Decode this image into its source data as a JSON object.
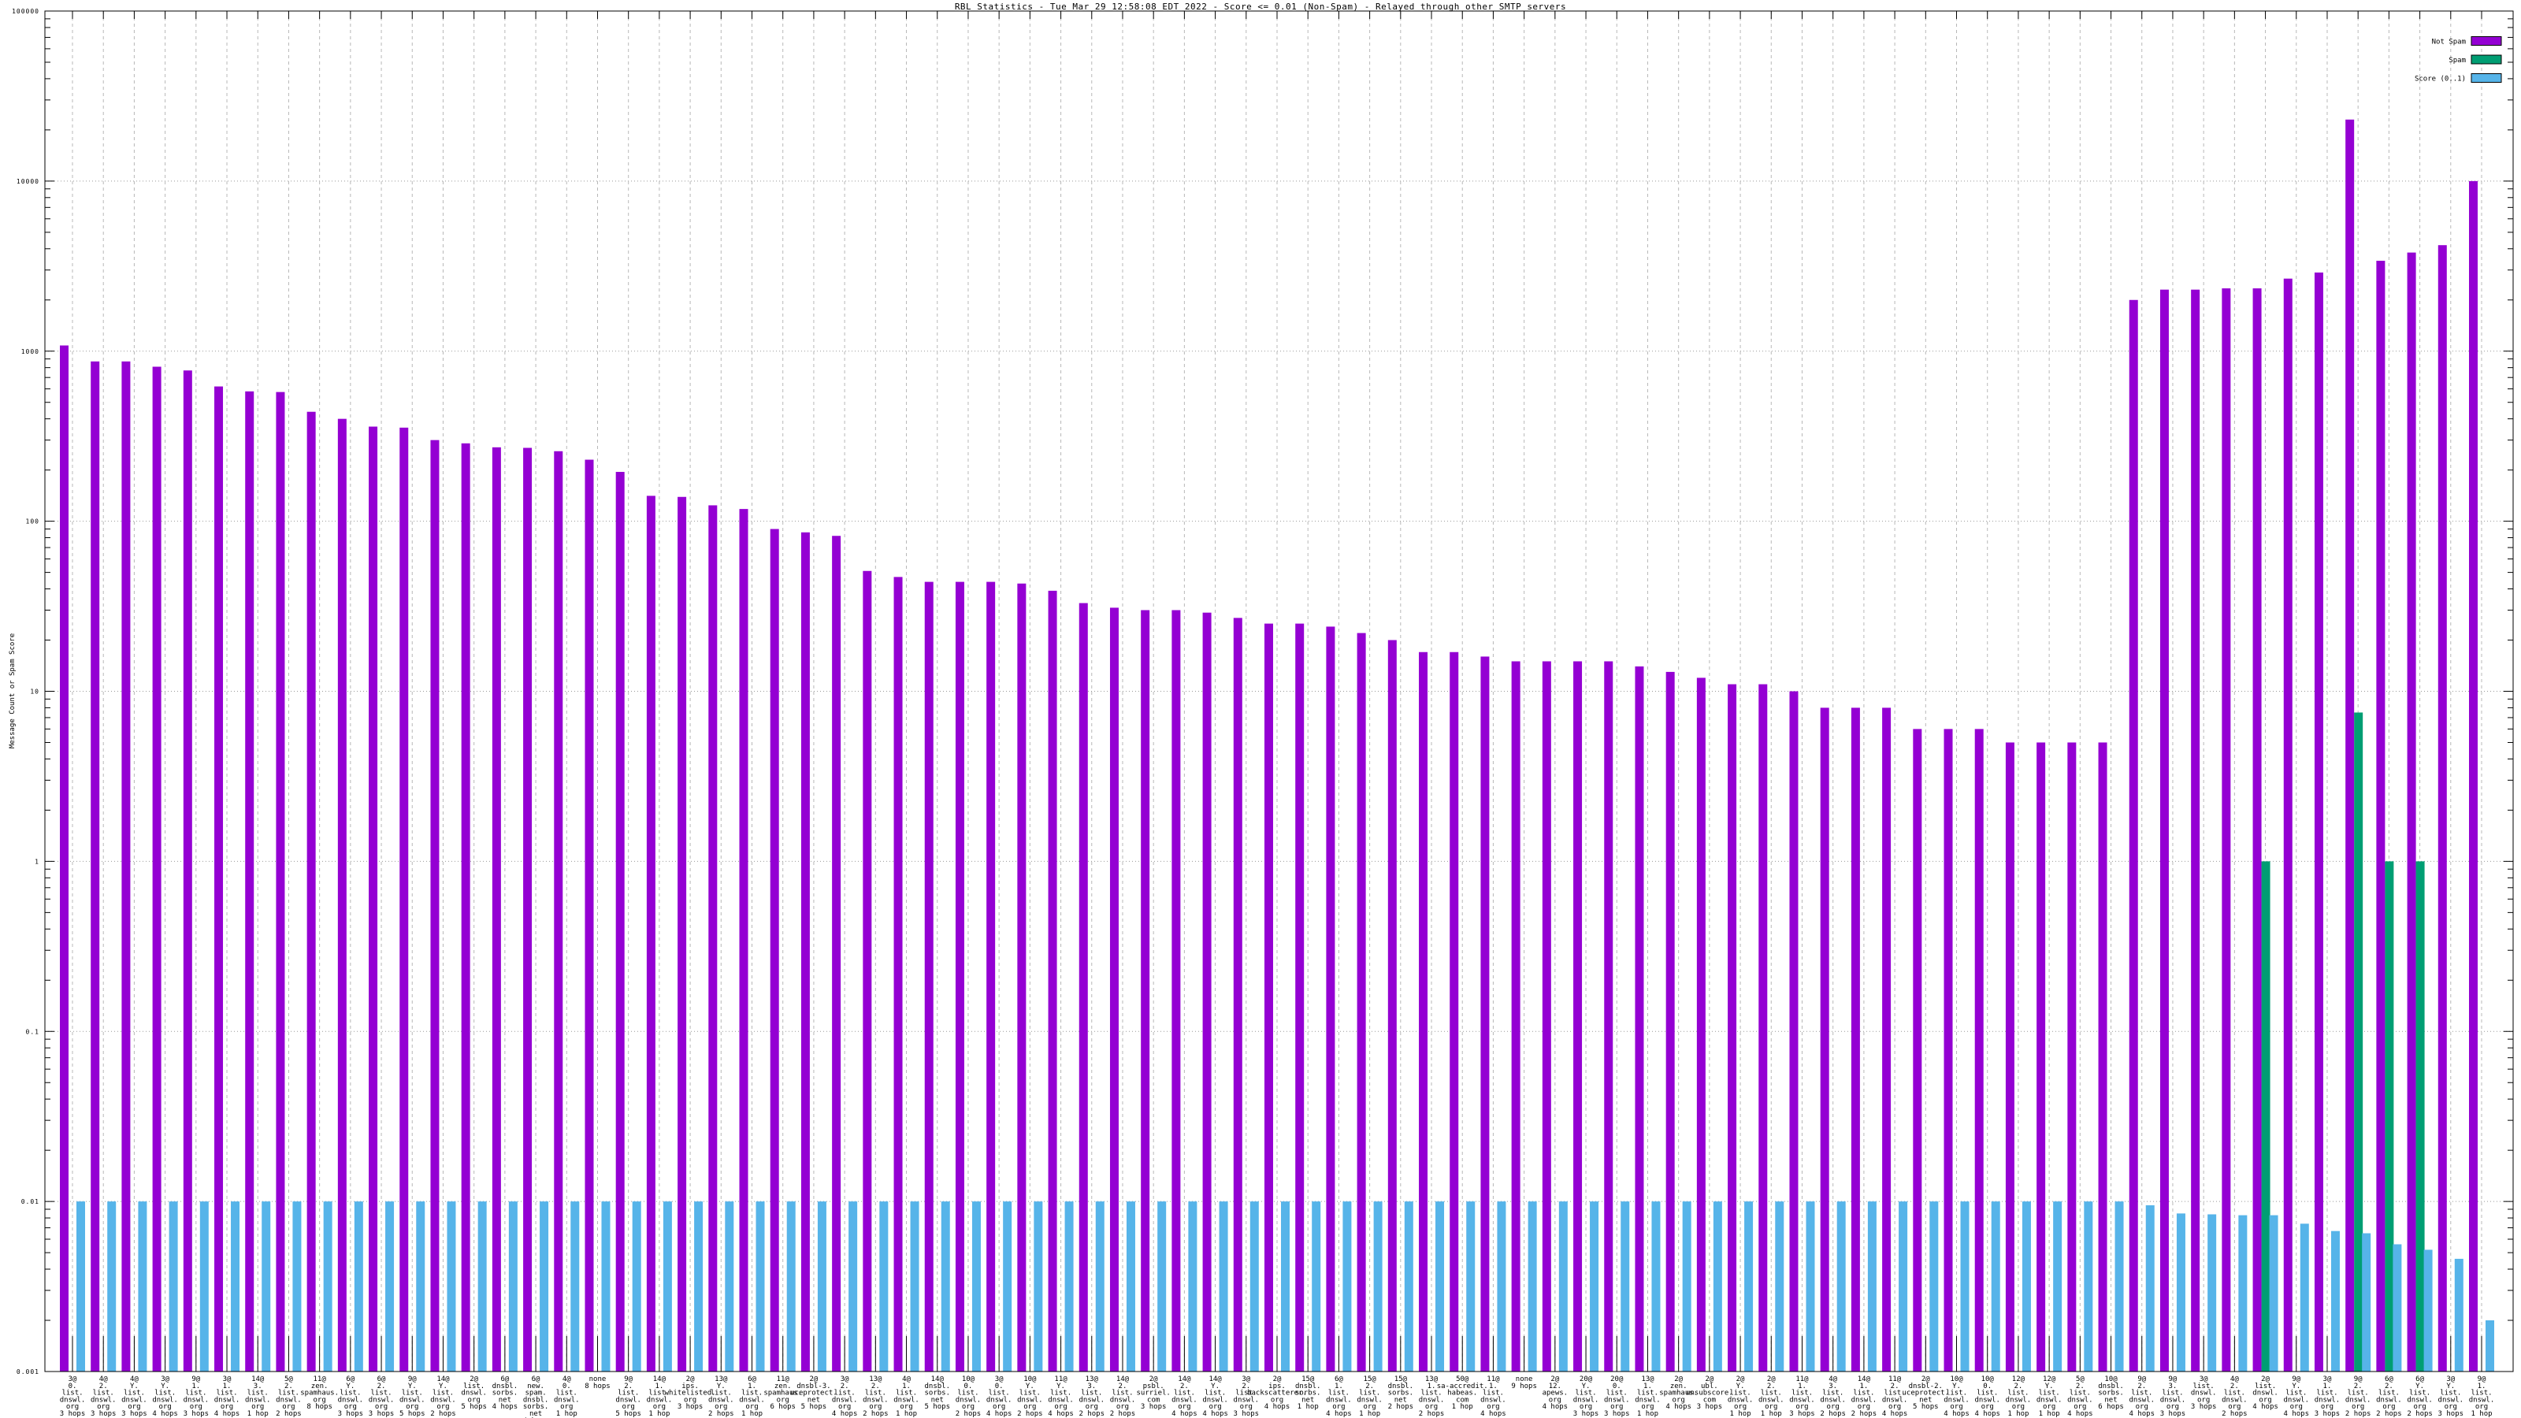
{
  "title": "RBL Statistics - Tue Mar 29 12:58:08 EDT 2022 - Score <= 0.01 (Non-Spam) - Relayed through other SMTP servers",
  "y_axis": {
    "label": "Message Count or Spam Score",
    "tick_labels": [
      "100000",
      "10000",
      "1000",
      "100",
      "10",
      "1",
      "0.1",
      "0.01",
      "0.001"
    ]
  },
  "legend": {
    "items": [
      {
        "label": "Not Spam",
        "color": "#9400d3"
      },
      {
        "label": "Spam",
        "color": "#009e73"
      },
      {
        "label": "Score (0..1)",
        "color": "#56b4e9"
      }
    ]
  },
  "chart_data": {
    "type": "bar",
    "title": "RBL Statistics - Tue Mar 29 12:58:08 EDT 2022 - Score <= 0.01 (Non-Spam) - Relayed through other SMTP servers",
    "ylabel": "Message Count or Spam Score",
    "yscale": "log",
    "ylim": [
      0.001,
      100000
    ],
    "grid": true,
    "legend_position": "top-right",
    "categories": [
      [
        "3@",
        "0.",
        "list.",
        "dnswl.",
        "org",
        "3 hops"
      ],
      [
        "4@",
        "2.",
        "list.",
        "dnswl.",
        "org",
        "3 hops"
      ],
      [
        "4@",
        "Y.",
        "list.",
        "dnswl.",
        "org",
        "3 hops"
      ],
      [
        "3@",
        "Y.",
        "list.",
        "dnswl.",
        "org",
        "4 hops"
      ],
      [
        "9@",
        "1.",
        "list.",
        "dnswl.",
        "org",
        "3 hops"
      ],
      [
        "3@",
        "1.",
        "list.",
        "dnswl.",
        "org",
        "4 hops"
      ],
      [
        "14@",
        "3.",
        "list.",
        "dnswl.",
        "org",
        "1 hop"
      ],
      [
        "5@",
        "2.",
        "list.",
        "dnswl.",
        "org",
        "2 hops"
      ],
      [
        "11@",
        "zen.",
        "spamhaus.",
        "org",
        "8 hops"
      ],
      [
        "6@",
        "Y.",
        "list.",
        "dnswl.",
        "org",
        "3 hops"
      ],
      [
        "6@",
        "2.",
        "list.",
        "dnswl.",
        "org",
        "3 hops"
      ],
      [
        "9@",
        "Y.",
        "list.",
        "dnswl.",
        "org",
        "5 hops"
      ],
      [
        "14@",
        "Y.",
        "list.",
        "dnswl.",
        "org",
        "2 hops"
      ],
      [
        "2@",
        "list.",
        "dnswl.",
        "org",
        "5 hops"
      ],
      [
        "6@",
        "dnsbl.",
        "sorbs.",
        "net",
        "4 hops"
      ],
      [
        "6@",
        "new.",
        "spam.",
        "dnsbl.",
        "sorbs.",
        "net",
        "4 hops"
      ],
      [
        "4@",
        "0.",
        "list.",
        "dnswl.",
        "org",
        "1 hop"
      ],
      [
        "none",
        "8 hops"
      ],
      [
        "9@",
        "2.",
        "list.",
        "dnswl.",
        "org",
        "5 hops"
      ],
      [
        "14@",
        "1.",
        "list.",
        "dnswl.",
        "org",
        "1 hop"
      ],
      [
        "2@",
        "ips.",
        "whitelisted.",
        "org",
        "3 hops"
      ],
      [
        "13@",
        "Y.",
        "list.",
        "dnswl.",
        "org",
        "2 hops"
      ],
      [
        "6@",
        "1.",
        "list.",
        "dnswl.",
        "org",
        "1 hop"
      ],
      [
        "11@",
        "zen.",
        "spamhaus.",
        "org",
        "6 hops"
      ],
      [
        "2@",
        "dnsbl-3.",
        "uceprotect.",
        "net",
        "5 hops"
      ],
      [
        "3@",
        "2.",
        "list.",
        "dnswl.",
        "org",
        "4 hops"
      ],
      [
        "13@",
        "2.",
        "list.",
        "dnswl.",
        "org",
        "2 hops"
      ],
      [
        "4@",
        "1.",
        "list.",
        "dnswl.",
        "org",
        "1 hop"
      ],
      [
        "14@",
        "dnsbl.",
        "sorbs.",
        "net",
        "5 hops"
      ],
      [
        "10@",
        "0.",
        "list.",
        "dnswl.",
        "org",
        "2 hops"
      ],
      [
        "3@",
        "0.",
        "list.",
        "dnswl.",
        "org",
        "4 hops"
      ],
      [
        "10@",
        "Y.",
        "list.",
        "dnswl.",
        "org",
        "2 hops"
      ],
      [
        "11@",
        "Y.",
        "list.",
        "dnswl.",
        "org",
        "4 hops"
      ],
      [
        "13@",
        "3.",
        "list.",
        "dnswl.",
        "org",
        "2 hops"
      ],
      [
        "14@",
        "2.",
        "list.",
        "dnswl.",
        "org",
        "2 hops"
      ],
      [
        "2@",
        "psbl.",
        "surriel.",
        "com",
        "3 hops"
      ],
      [
        "14@",
        "2.",
        "list.",
        "dnswl.",
        "org",
        "4 hops"
      ],
      [
        "14@",
        "Y.",
        "list.",
        "dnswl.",
        "org",
        "4 hops"
      ],
      [
        "3@",
        "2.",
        "list.",
        "dnswl.",
        "org",
        "3 hops"
      ],
      [
        "2@",
        "ips.",
        "backscatterer.",
        "org",
        "4 hops"
      ],
      [
        "15@",
        "dnsbl.",
        "sorbs.",
        "net",
        "1 hop"
      ],
      [
        "6@",
        "1.",
        "list.",
        "dnswl.",
        "org",
        "4 hops"
      ],
      [
        "15@",
        "2.",
        "list.",
        "dnswl.",
        "org",
        "1 hop"
      ],
      [
        "15@",
        "dnsbl.",
        "sorbs.",
        "net",
        "2 hops"
      ],
      [
        "13@",
        "1.",
        "list.",
        "dnswl.",
        "org",
        "2 hops"
      ],
      [
        "50@",
        "sa-accredit.",
        "habeas.",
        "com",
        "1 hop"
      ],
      [
        "11@",
        "1.",
        "list.",
        "dnswl.",
        "org",
        "4 hops"
      ],
      [
        "none",
        "9 hops"
      ],
      [
        "2@",
        "12.",
        "apews.",
        "org",
        "4 hops"
      ],
      [
        "20@",
        "Y.",
        "list.",
        "dnswl.",
        "org",
        "3 hops"
      ],
      [
        "20@",
        "0.",
        "list.",
        "dnswl.",
        "org",
        "3 hops"
      ],
      [
        "13@",
        "1.",
        "list.",
        "dnswl.",
        "org",
        "1 hop"
      ],
      [
        "2@",
        "zen.",
        "spamhaus.",
        "org",
        "4 hops"
      ],
      [
        "2@",
        "ubl.",
        "unsubscore.",
        "com",
        "3 hops"
      ],
      [
        "2@",
        "Y.",
        "list.",
        "dnswl.",
        "org",
        "1 hop"
      ],
      [
        "2@",
        "2.",
        "list.",
        "dnswl.",
        "org",
        "1 hop"
      ],
      [
        "11@",
        "1.",
        "list.",
        "dnswl.",
        "org",
        "3 hops"
      ],
      [
        "4@",
        "3.",
        "list.",
        "dnswl.",
        "org",
        "2 hops"
      ],
      [
        "14@",
        "1.",
        "list.",
        "dnswl.",
        "org",
        "2 hops"
      ],
      [
        "11@",
        "2.",
        "list.",
        "dnswl.",
        "org",
        "4 hops"
      ],
      [
        "2@",
        "dnsbl-2.",
        "uceprotect.",
        "net",
        "5 hops"
      ],
      [
        "10@",
        "Y.",
        "list.",
        "dnswl.",
        "org",
        "4 hops"
      ],
      [
        "10@",
        "0.",
        "list.",
        "dnswl.",
        "org",
        "4 hops"
      ],
      [
        "12@",
        "2.",
        "list.",
        "dnswl.",
        "org",
        "1 hop"
      ],
      [
        "12@",
        "Y.",
        "list.",
        "dnswl.",
        "org",
        "1 hop"
      ],
      [
        "5@",
        "2.",
        "list.",
        "dnswl.",
        "org",
        "4 hops"
      ],
      [
        "10@",
        "dnsbl.",
        "sorbs.",
        "net",
        "6 hops"
      ],
      [
        "9@",
        "2.",
        "list.",
        "dnswl.",
        "org",
        "4 hops"
      ],
      [
        "9@",
        "3.",
        "list.",
        "dnswl.",
        "org",
        "3 hops"
      ],
      [
        "3@",
        "list.",
        "dnswl.",
        "org",
        "3 hops"
      ],
      [
        "4@",
        "2.",
        "list.",
        "dnswl.",
        "org",
        "2 hops"
      ],
      [
        "2@",
        "list.",
        "dnswl.",
        "org",
        "4 hops"
      ],
      [
        "9@",
        "Y.",
        "list.",
        "dnswl.",
        "org",
        "4 hops"
      ],
      [
        "3@",
        "1.",
        "list.",
        "dnswl.",
        "org",
        "3 hops"
      ],
      [
        "9@",
        "2.",
        "list.",
        "dnswl.",
        "org",
        "2 hops"
      ],
      [
        "6@",
        "2.",
        "list.",
        "dnswl.",
        "org",
        "2 hops"
      ],
      [
        "6@",
        "Y.",
        "list.",
        "dnswl.",
        "org",
        "2 hops"
      ],
      [
        "3@",
        "Y.",
        "list.",
        "dnswl.",
        "org",
        "3 hops"
      ],
      [
        "9@",
        "1.",
        "list.",
        "dnswl.",
        "org",
        "1 hop"
      ]
    ],
    "series": [
      {
        "name": "Not Spam",
        "color": "#9400d3",
        "values": [
          1080,
          870,
          870,
          810,
          770,
          620,
          580,
          575,
          440,
          400,
          360,
          355,
          300,
          287,
          272,
          270,
          258,
          230,
          195,
          141,
          139,
          124,
          118,
          90,
          86,
          82,
          51,
          47,
          44,
          44,
          44,
          43,
          39,
          33,
          31,
          30,
          30,
          29,
          27,
          25,
          25,
          24,
          22,
          20,
          17,
          17,
          16,
          15,
          15,
          15,
          15,
          14,
          13,
          12,
          11,
          11,
          10,
          8,
          8,
          8,
          6,
          6,
          6,
          5,
          5,
          5,
          5,
          2000,
          2300,
          2300,
          2340,
          2340,
          2670,
          2900,
          23000,
          3400,
          3800,
          4200,
          10000
        ]
      },
      {
        "name": "Spam",
        "color": "#009e73",
        "values": [
          0,
          0,
          0,
          0,
          0,
          0,
          0,
          0,
          0,
          0,
          0,
          0,
          0,
          0,
          0,
          0,
          0,
          0,
          0,
          0,
          0,
          0,
          0,
          0,
          0,
          0,
          0,
          0,
          0,
          0,
          0,
          0,
          0,
          0,
          0,
          0,
          0,
          0,
          0,
          0,
          0,
          0,
          0,
          0,
          0,
          0,
          0,
          0,
          0,
          0,
          0,
          0,
          0,
          0,
          0,
          0,
          0,
          0,
          0,
          0,
          0,
          0,
          0,
          0,
          0,
          0,
          0,
          0,
          0,
          0,
          0,
          1,
          0,
          0,
          7.5,
          1,
          1,
          0,
          0
        ]
      },
      {
        "name": "Score (0..1)",
        "color": "#56b4e9",
        "values": [
          0.01,
          0.01,
          0.01,
          0.01,
          0.01,
          0.01,
          0.01,
          0.01,
          0.01,
          0.01,
          0.01,
          0.01,
          0.01,
          0.01,
          0.01,
          0.01,
          0.01,
          0.01,
          0.01,
          0.01,
          0.01,
          0.01,
          0.01,
          0.01,
          0.01,
          0.01,
          0.01,
          0.01,
          0.01,
          0.01,
          0.01,
          0.01,
          0.01,
          0.01,
          0.01,
          0.01,
          0.01,
          0.01,
          0.01,
          0.01,
          0.01,
          0.01,
          0.01,
          0.01,
          0.01,
          0.01,
          0.01,
          0.01,
          0.01,
          0.01,
          0.01,
          0.01,
          0.01,
          0.01,
          0.01,
          0.01,
          0.01,
          0.01,
          0.01,
          0.01,
          0.01,
          0.01,
          0.01,
          0.01,
          0.01,
          0.01,
          0.01,
          0.0095,
          0.0085,
          0.0084,
          0.0083,
          0.0083,
          0.0074,
          0.0067,
          0.0065,
          0.0056,
          0.0052,
          0.0046,
          0.002
        ]
      }
    ]
  }
}
